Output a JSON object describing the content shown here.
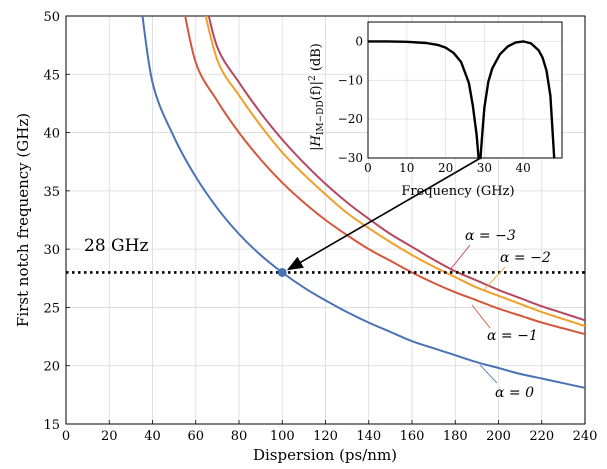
{
  "chart_data": [
    {
      "type": "line",
      "xlabel": "Dispersion (ps/nm)",
      "ylabel": "First notch frequency (GHz)",
      "xlim": [
        0,
        240
      ],
      "ylim": [
        15,
        50
      ],
      "x_ticks": [
        "0",
        "20",
        "40",
        "60",
        "80",
        "100",
        "120",
        "140",
        "160",
        "180",
        "200",
        "220",
        "240"
      ],
      "y_ticks": [
        "15",
        "20",
        "25",
        "30",
        "35",
        "40",
        "45",
        "50"
      ],
      "grid": true,
      "x": [
        30,
        40,
        50,
        60,
        70,
        80,
        90,
        100,
        110,
        120,
        130,
        140,
        150,
        160,
        170,
        180,
        190,
        200,
        210,
        220,
        230,
        240
      ],
      "series": [
        {
          "name": "α = 0",
          "color": "#4a72b5",
          "values": [
            null,
            44.3,
            39.6,
            36.2,
            33.5,
            31.3,
            29.5,
            28.0,
            26.7,
            25.6,
            24.6,
            23.7,
            22.9,
            22.1,
            21.5,
            20.9,
            20.3,
            19.8,
            19.3,
            18.9,
            18.5,
            18.1
          ]
        },
        {
          "name": "α = −1",
          "color": "#d4573c",
          "values": [
            null,
            null,
            null,
            46.0,
            42.7,
            40.0,
            37.7,
            35.7,
            34.0,
            32.5,
            31.2,
            30.0,
            29.0,
            28.0,
            27.1,
            26.3,
            25.6,
            24.9,
            24.3,
            23.7,
            23.2,
            22.7
          ]
        },
        {
          "name": "α = −2",
          "color": "#f0a02a",
          "values": [
            null,
            null,
            null,
            null,
            46.2,
            43.2,
            40.6,
            38.3,
            36.4,
            34.7,
            33.1,
            31.8,
            30.6,
            29.5,
            28.5,
            27.6,
            26.7,
            26.0,
            25.3,
            24.6,
            24.0,
            23.4
          ]
        },
        {
          "name": "α = −3",
          "color": "#b5485e",
          "values": [
            null,
            null,
            null,
            null,
            47.3,
            44.3,
            41.7,
            39.4,
            37.4,
            35.6,
            34.0,
            32.6,
            31.3,
            30.2,
            29.1,
            28.1,
            27.3,
            26.5,
            25.8,
            25.1,
            24.5,
            23.9
          ]
        }
      ],
      "reference_line": {
        "y": 28,
        "label": "28 GHz",
        "style": "dotted"
      },
      "marker": {
        "x": 100,
        "y": 28
      },
      "annotations": {
        "a0": "α = 0",
        "a1": "α = −1",
        "a2": "α = −2",
        "a3": "α = −3",
        "ref": "28 GHz"
      }
    },
    {
      "type": "line",
      "role": "inset",
      "xlabel": "Frequency (GHz)",
      "ylabel": "|H_IM−DD(f)|² (dB)",
      "ylabel_parts": {
        "pre": "|H",
        "sub": "IM−DD",
        "post": "(f)|",
        "sup": "2",
        "unit": " (dB)"
      },
      "xlim": [
        0,
        50
      ],
      "ylim": [
        -30,
        5
      ],
      "x_ticks": [
        "0",
        "10",
        "20",
        "30",
        "40"
      ],
      "y_ticks": [
        "0",
        "−10",
        "−20",
        "−30"
      ],
      "grid": true,
      "x": [
        0,
        5,
        10,
        15,
        18,
        20,
        22,
        24,
        26,
        27,
        28,
        28.5,
        29,
        29.5,
        30,
        31,
        32,
        34,
        36,
        38,
        40,
        42,
        44,
        45,
        46,
        47,
        48
      ],
      "series": [
        {
          "name": "",
          "color": "#000000",
          "values": [
            0,
            0,
            -0.1,
            -0.4,
            -0.9,
            -1.6,
            -2.9,
            -5.3,
            -10.7,
            -16.5,
            -24.0,
            -30,
            -30,
            -23.0,
            -17.0,
            -10.4,
            -7.0,
            -3.3,
            -1.3,
            -0.3,
            0,
            -0.5,
            -2.3,
            -4.2,
            -7.5,
            -14.0,
            -30
          ]
        }
      ]
    }
  ],
  "arrow": {
    "from": "inset-notch",
    "to": "marker"
  }
}
